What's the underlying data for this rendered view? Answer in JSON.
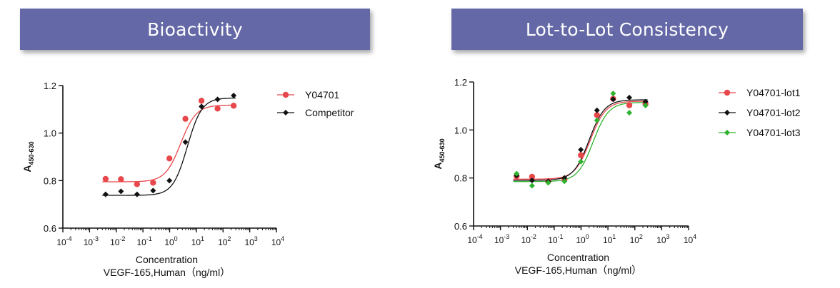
{
  "panels": [
    {
      "banner_title": "Bioactivity",
      "ylabel_main": "A",
      "ylabel_sub": "450-630",
      "xlabel_line1": "Concentration",
      "xlabel_line2": "VEGF-165,Human（ng/ml）"
    },
    {
      "banner_title": "Lot-to-Lot Consistency",
      "ylabel_main": "A",
      "ylabel_sub": "450-630",
      "xlabel_line1": "Concentration",
      "xlabel_line2": "VEGF-165,Human（ng/ml）"
    }
  ],
  "chart_data": [
    {
      "type": "scatter",
      "title": "Bioactivity",
      "xlabel": "Concentration VEGF-165,Human（ng/ml）",
      "ylabel": "A450-630",
      "xscale": "log",
      "xlim": [
        0.0001,
        10000
      ],
      "ylim": [
        0.6,
        1.2
      ],
      "x_ticks": [
        0.0001,
        0.001,
        0.01,
        0.1,
        1,
        10,
        100,
        1000,
        10000
      ],
      "x_tick_labels": [
        [
          "10",
          "-4"
        ],
        [
          "10",
          "-3"
        ],
        [
          "10",
          "-2"
        ],
        [
          "10",
          "-1"
        ],
        [
          "10",
          "0"
        ],
        [
          "10",
          "1"
        ],
        [
          "10",
          "2"
        ],
        [
          "10",
          "3"
        ],
        [
          "10",
          "4"
        ]
      ],
      "y_ticks": [
        0.6,
        0.8,
        1.0,
        1.2
      ],
      "y_tick_labels": [
        "0.6",
        "0.8",
        "1.0",
        "1.2"
      ],
      "legend_position": "top-right",
      "series": [
        {
          "name": "Y04701",
          "color": "#e8474b",
          "marker": "circle",
          "fit": {
            "bottom": 0.795,
            "top": 1.118,
            "ec50": 2.6,
            "hill": 1.5
          },
          "points": [
            {
              "x": 0.004,
              "y": 0.807
            },
            {
              "x": 0.015,
              "y": 0.806
            },
            {
              "x": 0.06,
              "y": 0.785
            },
            {
              "x": 0.24,
              "y": 0.791
            },
            {
              "x": 0.98,
              "y": 0.893
            },
            {
              "x": 3.9,
              "y": 1.06
            },
            {
              "x": 15.6,
              "y": 1.136
            },
            {
              "x": 62.5,
              "y": 1.103
            },
            {
              "x": 250,
              "y": 1.115
            }
          ]
        },
        {
          "name": "Competitor",
          "color": "#111111",
          "marker": "diamond",
          "fit": {
            "bottom": 0.738,
            "top": 1.148,
            "ec50": 4.6,
            "hill": 1.6
          },
          "points": [
            {
              "x": 0.004,
              "y": 0.742
            },
            {
              "x": 0.015,
              "y": 0.755
            },
            {
              "x": 0.06,
              "y": 0.742
            },
            {
              "x": 0.24,
              "y": 0.758
            },
            {
              "x": 0.98,
              "y": 0.8
            },
            {
              "x": 3.9,
              "y": 0.962
            },
            {
              "x": 15.6,
              "y": 1.112
            },
            {
              "x": 62.5,
              "y": 1.142
            },
            {
              "x": 250,
              "y": 1.158
            }
          ]
        }
      ]
    },
    {
      "type": "scatter",
      "title": "Lot-to-Lot Consistency",
      "xlabel": "Concentration VEGF-165,Human（ng/ml）",
      "ylabel": "A450-630",
      "xscale": "log",
      "xlim": [
        0.0001,
        10000
      ],
      "ylim": [
        0.6,
        1.2
      ],
      "x_ticks": [
        0.0001,
        0.001,
        0.01,
        0.1,
        1,
        10,
        100,
        1000,
        10000
      ],
      "x_tick_labels": [
        [
          "10",
          "-4"
        ],
        [
          "10",
          "-3"
        ],
        [
          "10",
          "-2"
        ],
        [
          "10",
          "-1"
        ],
        [
          "10",
          "0"
        ],
        [
          "10",
          "1"
        ],
        [
          "10",
          "2"
        ],
        [
          "10",
          "3"
        ],
        [
          "10",
          "4"
        ]
      ],
      "y_ticks": [
        0.6,
        0.8,
        1.0,
        1.2
      ],
      "y_tick_labels": [
        "0.6",
        "0.8",
        "1.0",
        "1.2"
      ],
      "legend_position": "top-right",
      "series": [
        {
          "name": "Y04701-lot1",
          "color": "#e8474b",
          "marker": "circle",
          "fit": {
            "bottom": 0.795,
            "top": 1.12,
            "ec50": 2.2,
            "hill": 1.5
          },
          "points": [
            {
              "x": 0.004,
              "y": 0.807
            },
            {
              "x": 0.015,
              "y": 0.805
            },
            {
              "x": 0.06,
              "y": 0.786
            },
            {
              "x": 0.24,
              "y": 0.793
            },
            {
              "x": 0.98,
              "y": 0.895
            },
            {
              "x": 3.9,
              "y": 1.062
            },
            {
              "x": 15.6,
              "y": 1.13
            },
            {
              "x": 62.5,
              "y": 1.103
            },
            {
              "x": 250,
              "y": 1.108
            }
          ]
        },
        {
          "name": "Y04701-lot2",
          "color": "#111111",
          "marker": "diamond",
          "fit": {
            "bottom": 0.79,
            "top": 1.126,
            "ec50": 2.0,
            "hill": 1.5
          },
          "points": [
            {
              "x": 0.004,
              "y": 0.81
            },
            {
              "x": 0.015,
              "y": 0.79
            },
            {
              "x": 0.06,
              "y": 0.786
            },
            {
              "x": 0.24,
              "y": 0.8
            },
            {
              "x": 0.98,
              "y": 0.918
            },
            {
              "x": 3.9,
              "y": 1.082
            },
            {
              "x": 15.6,
              "y": 1.128
            },
            {
              "x": 62.5,
              "y": 1.135
            },
            {
              "x": 250,
              "y": 1.118
            }
          ]
        },
        {
          "name": "Y04701-lot3",
          "color": "#2fb32f",
          "marker": "diamond",
          "fit": {
            "bottom": 0.785,
            "top": 1.115,
            "ec50": 2.8,
            "hill": 1.5
          },
          "points": [
            {
              "x": 0.004,
              "y": 0.818
            },
            {
              "x": 0.015,
              "y": 0.768
            },
            {
              "x": 0.06,
              "y": 0.78
            },
            {
              "x": 0.24,
              "y": 0.786
            },
            {
              "x": 0.98,
              "y": 0.868
            },
            {
              "x": 3.9,
              "y": 1.04
            },
            {
              "x": 15.6,
              "y": 1.152
            },
            {
              "x": 62.5,
              "y": 1.072
            },
            {
              "x": 250,
              "y": 1.102
            }
          ]
        }
      ]
    }
  ]
}
